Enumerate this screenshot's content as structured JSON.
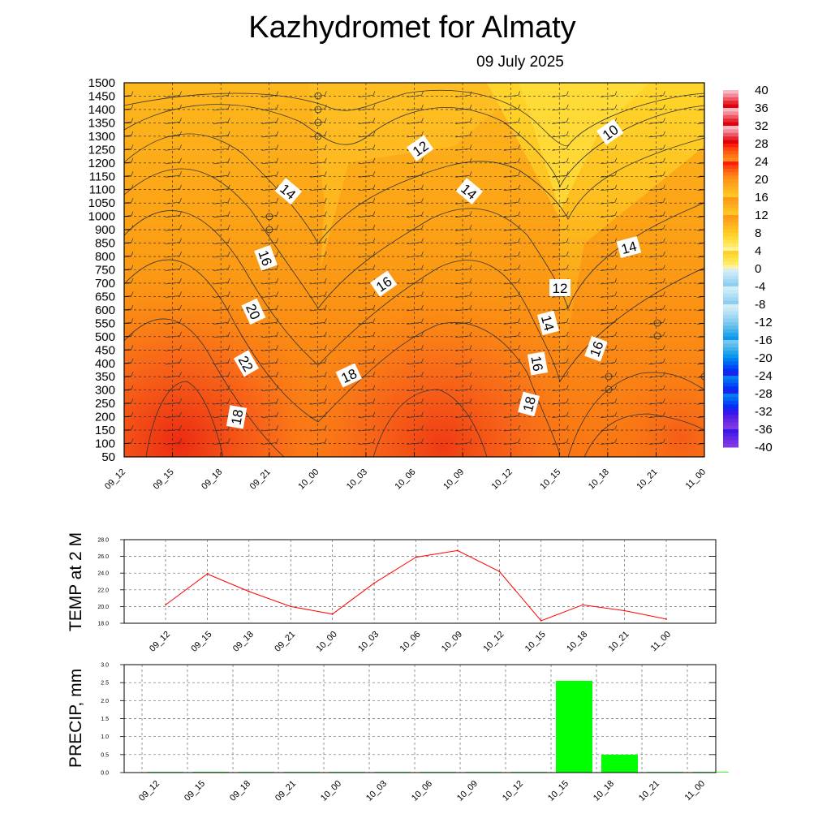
{
  "header": {
    "title": "Kazhydromet  for Almaty",
    "date": "09 July 2025"
  },
  "time_labels": [
    "09_12",
    "09_15",
    "09_18",
    "09_21",
    "10_00",
    "10_03",
    "10_06",
    "10_09",
    "10_12",
    "10_15",
    "10_18",
    "10_21",
    "11_00"
  ],
  "colorbar": {
    "labels": [
      "40",
      "36",
      "32",
      "28",
      "24",
      "20",
      "16",
      "12",
      "8",
      "4",
      "0",
      "-4",
      "-8",
      "-12",
      "-16",
      "-20",
      "-24",
      "-28",
      "-32",
      "-36",
      "-40"
    ],
    "range": [
      -40,
      40
    ]
  },
  "colors": {
    "hot": "#e8281a",
    "warm": "#fb8c12",
    "mild": "#ffc21c",
    "cool": "#ffde3a",
    "temp_line": "#ff0000",
    "precip_bar": "#00ff00"
  },
  "chart_data": [
    {
      "type": "heatmap",
      "title": "Kazhydromet  for Almaty",
      "subtitle": "09 July 2025",
      "x": [
        "09_12",
        "09_15",
        "09_18",
        "09_21",
        "10_00",
        "10_03",
        "10_06",
        "10_09",
        "10_12",
        "10_15",
        "10_18",
        "10_21",
        "11_00"
      ],
      "y_ticks": [
        "1500",
        "1450",
        "1400",
        "1350",
        "1300",
        "1250",
        "1200",
        "1150",
        "1100",
        "1050",
        "1000",
        "900",
        "850",
        "800",
        "750",
        "700",
        "650",
        "600",
        "550",
        "500",
        "450",
        "400",
        "350",
        "300",
        "250",
        "200",
        "150",
        "100",
        "50"
      ],
      "contour_labels": [
        "10",
        "12",
        "14",
        "14",
        "14",
        "16",
        "16",
        "12",
        "14",
        "16",
        "18",
        "20",
        "22",
        "18",
        "16",
        "18"
      ],
      "overlay": "wind barbs"
    },
    {
      "type": "line",
      "ylabel": "TEMP at 2 M",
      "x": [
        "09_12",
        "09_15",
        "09_18",
        "09_21",
        "10_00",
        "10_03",
        "10_06",
        "10_09",
        "10_12",
        "10_15",
        "10_18",
        "10_21",
        "11_00"
      ],
      "values": [
        20.2,
        23.9,
        21.8,
        20.0,
        19.1,
        22.8,
        25.9,
        26.7,
        24.2,
        18.3,
        20.2,
        19.5,
        18.5
      ],
      "ylim": [
        18,
        28
      ],
      "y_ticks": [
        "28.0",
        "26.0",
        "24.0",
        "22.0",
        "20.0",
        "18.0"
      ]
    },
    {
      "type": "bar",
      "ylabel": "PRECIP, mm",
      "categories": [
        "09_12",
        "09_15",
        "09_18",
        "09_21",
        "10_00",
        "10_03",
        "10_06",
        "10_09",
        "10_12",
        "10_15",
        "10_18",
        "10_21",
        "11_00"
      ],
      "values": [
        0.0,
        0.02,
        0.0,
        0.0,
        0.0,
        0.0,
        0.0,
        0.0,
        0.0,
        2.55,
        0.5,
        0.0,
        0.0
      ],
      "ylim": [
        0,
        3
      ],
      "y_ticks": [
        "3.0",
        "2.5",
        "2.0",
        "1.5",
        "1.0",
        "0.5",
        "0.0"
      ]
    }
  ]
}
